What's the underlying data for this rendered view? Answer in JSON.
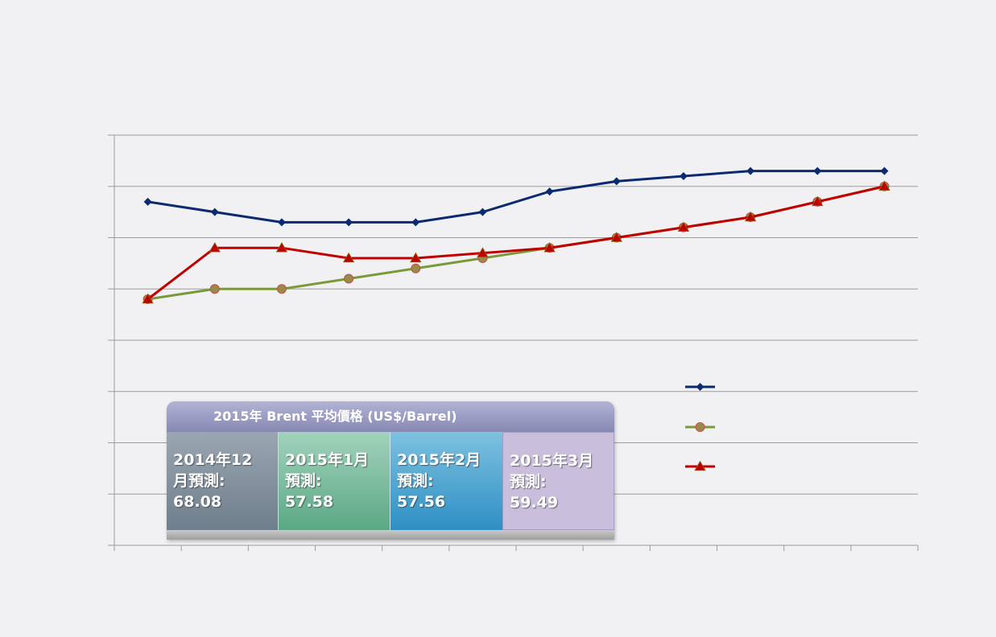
{
  "chart_data": {
    "type": "line",
    "x": [
      1,
      2,
      3,
      4,
      5,
      6,
      7,
      8,
      9,
      10,
      11,
      12
    ],
    "ylim": [
      0,
      8
    ],
    "grid": true,
    "series": [
      {
        "color": "#0b2a6f",
        "marker": "diamond",
        "values": [
          6.7,
          6.5,
          6.3,
          6.3,
          6.3,
          6.5,
          6.9,
          7.1,
          7.2,
          7.3,
          7.3,
          7.3
        ]
      },
      {
        "color": "#7a9a3a",
        "marker": "circle",
        "values": [
          4.8,
          5.0,
          5.0,
          5.2,
          5.4,
          5.6,
          5.8,
          6.0,
          6.2,
          6.4,
          6.7,
          7.0
        ]
      },
      {
        "color": "#c00000",
        "marker": "triangle",
        "values": [
          4.8,
          5.8,
          5.8,
          5.6,
          5.6,
          5.7,
          5.8,
          6.0,
          6.2,
          6.4,
          6.7,
          7.0
        ]
      }
    ]
  },
  "info_box": {
    "title": "2015年 Brent 平均價格 (US$/Barrel)",
    "cells": [
      {
        "line1": "2014年12",
        "line2": "月預測:",
        "line3": "68.08"
      },
      {
        "line1": "2015年1月",
        "line2": "預測:",
        "line3": "57.58"
      },
      {
        "line1": "2015年2月",
        "line2": "預測:",
        "line3": "57.56"
      },
      {
        "line1": "2015年3月",
        "line2": "預測:",
        "line3": "59.49"
      }
    ]
  }
}
